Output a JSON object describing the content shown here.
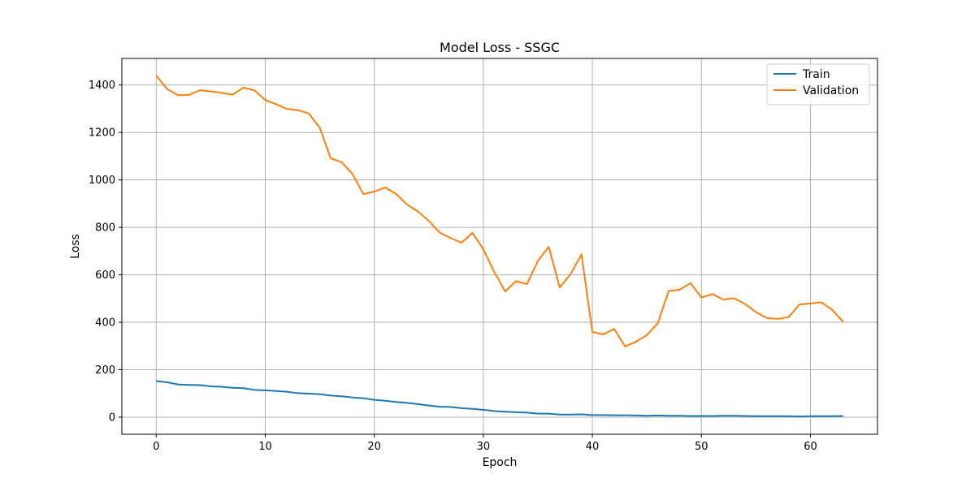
{
  "chart_data": {
    "type": "line",
    "title": "Model Loss - SSGC",
    "xlabel": "Epoch",
    "ylabel": "Loss",
    "xlim": [
      -3.15,
      66.15
    ],
    "ylim": [
      -72,
      1512
    ],
    "xticks": [
      0,
      10,
      20,
      30,
      40,
      50,
      60
    ],
    "yticks": [
      0,
      200,
      400,
      600,
      800,
      1000,
      1200,
      1400
    ],
    "grid": true,
    "legend_position": "top-right",
    "x": [
      0,
      1,
      2,
      3,
      4,
      5,
      6,
      7,
      8,
      9,
      10,
      11,
      12,
      13,
      14,
      15,
      16,
      17,
      18,
      19,
      20,
      21,
      22,
      23,
      24,
      25,
      26,
      27,
      28,
      29,
      30,
      31,
      32,
      33,
      34,
      35,
      36,
      37,
      38,
      39,
      40,
      41,
      42,
      43,
      44,
      45,
      46,
      47,
      48,
      49,
      50,
      51,
      52,
      53,
      54,
      55,
      56,
      57,
      58,
      59,
      60,
      61,
      62,
      63
    ],
    "series": [
      {
        "name": "Train",
        "color": "#1f77b4",
        "values": [
          152,
          147,
          138,
          136,
          135,
          130,
          128,
          124,
          122,
          115,
          113,
          110,
          107,
          101,
          99,
          97,
          91,
          88,
          83,
          80,
          73,
          69,
          64,
          60,
          55,
          49,
          44,
          43,
          38,
          35,
          31,
          26,
          23,
          21,
          19,
          15,
          15,
          11,
          11,
          12,
          9,
          9,
          8,
          8,
          7,
          6,
          7,
          6,
          6,
          5,
          5,
          5,
          6,
          6,
          5,
          4,
          4,
          4,
          4,
          3,
          4,
          4,
          4,
          5
        ]
      },
      {
        "name": "Validation",
        "color": "#ff7f0e",
        "values": [
          1440,
          1383,
          1357,
          1358,
          1378,
          1373,
          1367,
          1359,
          1389,
          1378,
          1337,
          1319,
          1299,
          1294,
          1280,
          1220,
          1091,
          1075,
          1025,
          940,
          951,
          968,
          941,
          896,
          867,
          827,
          778,
          755,
          735,
          777,
          708,
          612,
          530,
          573,
          561,
          658,
          718,
          547,
          603,
          686,
          359,
          349,
          372,
          298,
          318,
          346,
          396,
          532,
          537,
          565,
          504,
          519,
          496,
          501,
          477,
          443,
          418,
          414,
          422,
          475,
          479,
          484,
          452,
          402
        ]
      }
    ]
  }
}
